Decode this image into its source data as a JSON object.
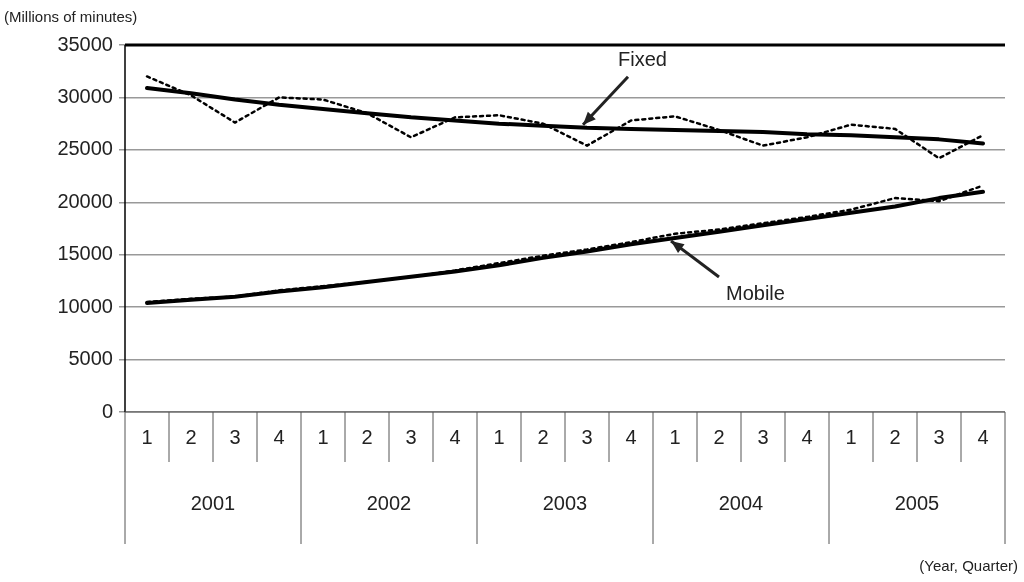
{
  "chart_data": {
    "type": "line",
    "ylabel": "(Millions of minutes)",
    "categories": [
      "1",
      "2",
      "3",
      "4",
      "1",
      "2",
      "3",
      "4",
      "1",
      "2",
      "3",
      "4",
      "1",
      "2",
      "3",
      "4",
      "1",
      "2",
      "3",
      "4"
    ],
    "annotations": [
      "2001",
      "2002",
      "2003",
      "2004",
      "2005",
      "(Year, Quarter)"
    ],
    "ylim": [
      0,
      35000
    ],
    "yticks": [
      0,
      5000,
      10000,
      15000,
      20000,
      25000,
      30000,
      35000
    ],
    "grid": "y",
    "legend": false,
    "marker": "none",
    "series": [
      {
        "color": "#000000",
        "line_style": "dotted",
        "values": [
          32000,
          30200,
          27600,
          30000,
          29800,
          28500,
          26200,
          28100,
          28300,
          27500,
          25400,
          27800,
          28200,
          26900,
          25400,
          26200,
          27400,
          27000,
          24200,
          26400
        ]
      },
      {
        "name": "Fixed",
        "color": "#000000",
        "line_style": "solid",
        "values": [
          30900,
          30400,
          29800,
          29300,
          28900,
          28500,
          28100,
          27800,
          27500,
          27300,
          27100,
          27000,
          26900,
          26800,
          26700,
          26500,
          26400,
          26200,
          26000,
          25600
        ]
      },
      {
        "color": "#000000",
        "line_style": "dotted",
        "values": [
          10500,
          10800,
          11000,
          11600,
          12000,
          12400,
          12900,
          13500,
          14200,
          14900,
          15500,
          16200,
          17000,
          17400,
          18000,
          18600,
          19300,
          20400,
          20100,
          21600
        ]
      },
      {
        "name": "Mobile",
        "color": "#000000",
        "line_style": "solid",
        "values": [
          10400,
          10700,
          11000,
          11500,
          11900,
          12400,
          12900,
          13400,
          14000,
          14700,
          15300,
          16000,
          16600,
          17200,
          17800,
          18400,
          19000,
          19600,
          20400,
          21000
        ]
      }
    ]
  }
}
